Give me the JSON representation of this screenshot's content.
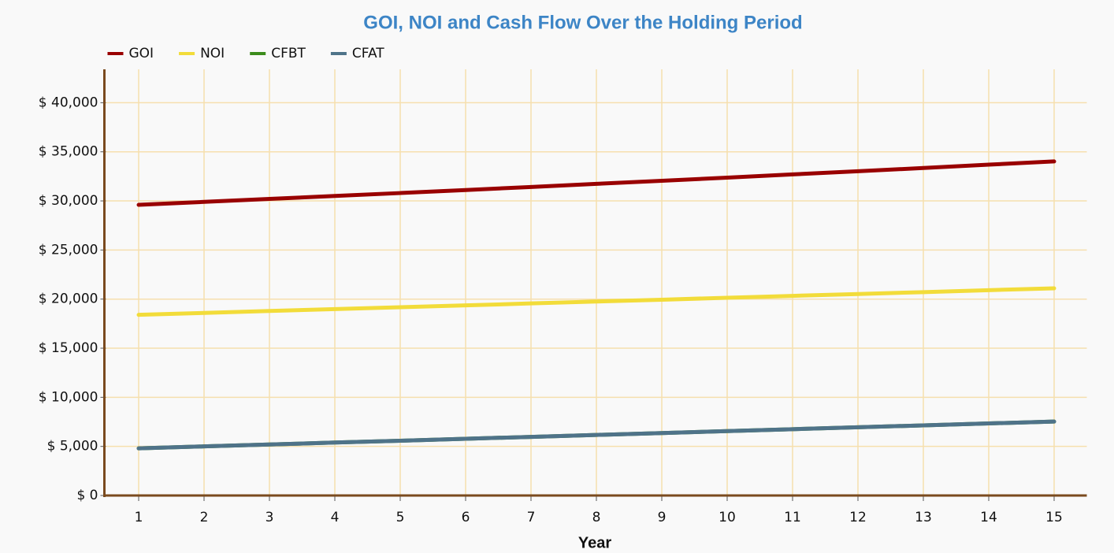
{
  "chart_data": {
    "type": "line",
    "title": "GOI, NOI and Cash Flow Over the Holding Period",
    "x_label": "Year",
    "x": [
      1,
      2,
      3,
      4,
      5,
      6,
      7,
      8,
      9,
      10,
      11,
      12,
      13,
      14,
      15
    ],
    "xlim": [
      0.5,
      15.5
    ],
    "xticks": [
      1,
      2,
      3,
      4,
      5,
      6,
      7,
      8,
      9,
      10,
      11,
      12,
      13,
      14,
      15
    ],
    "ylim": [
      0,
      43400
    ],
    "yticks": [
      {
        "value": 0,
        "label": "$ 0"
      },
      {
        "value": 5000,
        "label": "$ 5,000"
      },
      {
        "value": 10000,
        "label": "$ 10,000"
      },
      {
        "value": 15000,
        "label": "$ 15,000"
      },
      {
        "value": 20000,
        "label": "$ 20,000"
      },
      {
        "value": 25000,
        "label": "$ 25,000"
      },
      {
        "value": 30000,
        "label": "$ 30,000"
      },
      {
        "value": 35000,
        "label": "$ 35,000"
      },
      {
        "value": 40000,
        "label": "$ 40,000"
      }
    ],
    "grid": true,
    "legend": "top-left",
    "series": [
      {
        "name": "GOI",
        "color": "#990000",
        "values": [
          29600,
          29900,
          30200,
          30500,
          30800,
          31110,
          31420,
          31740,
          32050,
          32370,
          32700,
          33020,
          33350,
          33690,
          34020
        ]
      },
      {
        "name": "NOI",
        "color": "#f2dc3a",
        "values": [
          18400,
          18590,
          18790,
          18980,
          19170,
          19360,
          19560,
          19750,
          19940,
          20140,
          20330,
          20520,
          20710,
          20910,
          21100
        ]
      },
      {
        "name": "CFBT",
        "color": "#3c8c1c",
        "values": [
          4800,
          5000,
          5190,
          5390,
          5580,
          5780,
          5970,
          6170,
          6360,
          6560,
          6750,
          6950,
          7140,
          7340,
          7530
        ]
      },
      {
        "name": "CFAT",
        "color": "#4f7389",
        "values": [
          4800,
          5000,
          5190,
          5390,
          5580,
          5780,
          5970,
          6170,
          6360,
          6560,
          6750,
          6950,
          7140,
          7340,
          7530
        ]
      }
    ]
  }
}
